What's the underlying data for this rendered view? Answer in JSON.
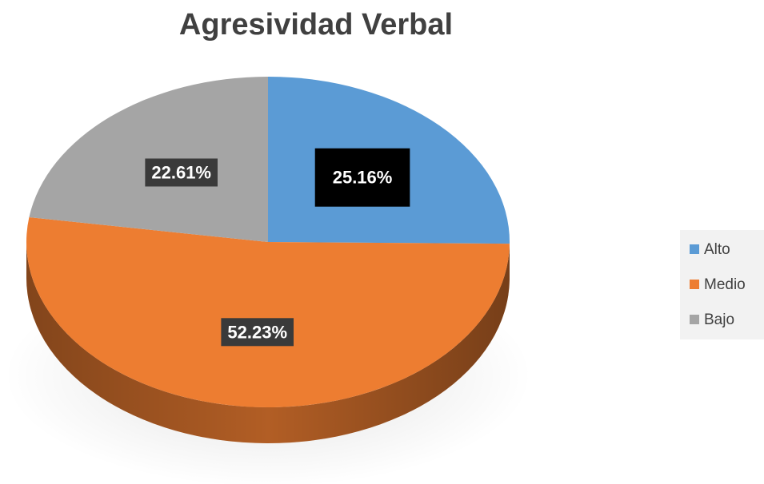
{
  "chart_data": {
    "type": "pie",
    "title": "Agresividad Verbal",
    "categories": [
      "Alto",
      "Medio",
      "Bajo"
    ],
    "values": [
      25.16,
      52.23,
      22.61
    ],
    "value_labels": [
      "25.16%",
      "52.23%",
      "22.61%"
    ],
    "colors": [
      "#5b9bd5",
      "#ed7d31",
      "#a5a5a5"
    ],
    "legend": "right"
  }
}
